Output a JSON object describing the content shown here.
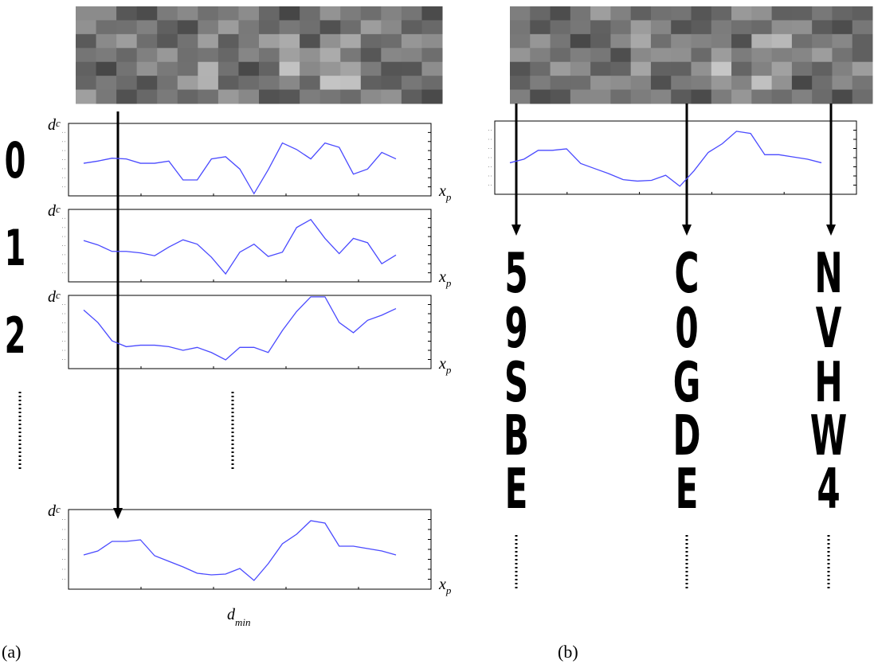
{
  "panel_a": {
    "label": "(a)",
    "digits": [
      "0",
      "1",
      "2"
    ],
    "plots": [
      {
        "y_label": "d",
        "y_sub": "c",
        "x_label": "x",
        "x_sub": "p",
        "values": [
          45,
          48,
          52,
          51,
          45,
          45,
          48,
          22,
          22,
          51,
          54,
          37,
          3,
          36,
          73,
          64,
          51,
          73,
          67,
          30,
          37,
          60,
          51
        ]
      },
      {
        "y_label": "d",
        "y_sub": "c",
        "x_label": "x",
        "x_sub": "p",
        "values": [
          57,
          51,
          42,
          42,
          40,
          36,
          48,
          58,
          52,
          34,
          11,
          41,
          52,
          35,
          41,
          75,
          86,
          60,
          39,
          60,
          54,
          25,
          37
        ]
      },
      {
        "y_label": "d",
        "y_sub": "c",
        "x_label": "x",
        "x_sub": "p",
        "values": [
          80,
          63,
          38,
          30,
          32,
          32,
          30,
          25,
          29,
          22,
          12,
          29,
          29,
          22,
          52,
          78,
          98,
          98,
          63,
          49,
          66,
          73,
          82
        ]
      },
      {
        "y_label": "d",
        "y_sub": "c",
        "x_label": "x",
        "x_sub": "p",
        "values": [
          43,
          48,
          60,
          60,
          62,
          42,
          35,
          28,
          20,
          18,
          19,
          26,
          11,
          32,
          57,
          69,
          86,
          83,
          54,
          54,
          51,
          48,
          43
        ]
      }
    ],
    "min_label": "d",
    "min_sub": "min"
  },
  "panel_b": {
    "label": "(b)",
    "plot": {
      "values": [
        43,
        48,
        60,
        60,
        62,
        42,
        35,
        28,
        20,
        18,
        19,
        26,
        11,
        32,
        57,
        69,
        86,
        83,
        54,
        54,
        51,
        48,
        43
      ]
    },
    "columns": [
      [
        "5",
        "9",
        "S",
        "B",
        "E"
      ],
      [
        "C",
        "0",
        "G",
        "D",
        "E"
      ],
      [
        "N",
        "V",
        "H",
        "W",
        "4"
      ]
    ]
  }
}
